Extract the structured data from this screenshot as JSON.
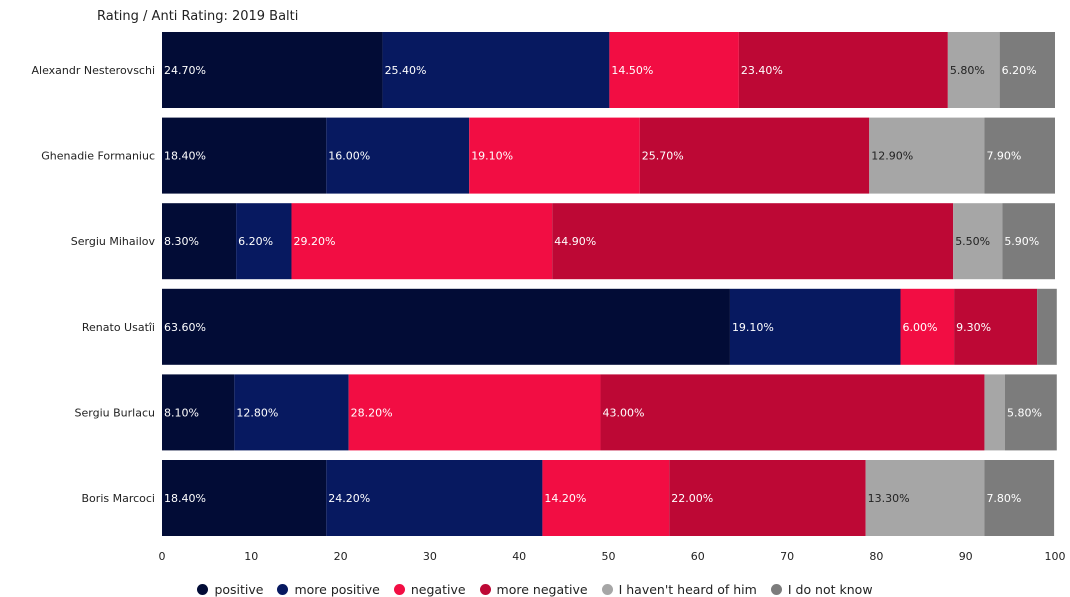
{
  "chart_data": {
    "type": "bar",
    "orientation": "horizontal",
    "stacked": true,
    "title": "Rating / Anti Rating: 2019 Balti",
    "xlabel": "",
    "ylabel": "",
    "xlim": [
      0,
      100
    ],
    "x_ticks": [
      "0",
      "10",
      "20",
      "30",
      "40",
      "50",
      "60",
      "70",
      "80",
      "90",
      "100"
    ],
    "grid": false,
    "legend_position": "bottom",
    "categories": [
      "Alexandr Nesterovschi",
      "Ghenadie Formaniuc",
      "Sergiu Mihailov",
      "Renato Usatîi",
      "Sergiu Burlacu",
      "Boris Marcoci"
    ],
    "series": [
      {
        "name": "positive",
        "color": "#020c36",
        "label_color": "#ffffff",
        "values": [
          24.7,
          18.4,
          8.3,
          63.6,
          8.1,
          18.4
        ],
        "labels": [
          "24.70%",
          "18.40%",
          "8.30%",
          "63.60%",
          "8.10%",
          "18.40%"
        ]
      },
      {
        "name": "more positive",
        "color": "#071960",
        "label_color": "#ffffff",
        "values": [
          25.4,
          16.0,
          6.2,
          19.1,
          12.8,
          24.2
        ],
        "labels": [
          "25.40%",
          "16.00%",
          "6.20%",
          "19.10%",
          "12.80%",
          "24.20%"
        ]
      },
      {
        "name": "negative",
        "color": "#f20d43",
        "label_color": "#ffffff",
        "values": [
          14.5,
          19.1,
          29.2,
          6.0,
          28.2,
          14.2
        ],
        "labels": [
          "14.50%",
          "19.10%",
          "29.20%",
          "6.00%",
          "28.20%",
          "14.20%"
        ]
      },
      {
        "name": "more negative",
        "color": "#bd0835",
        "label_color": "#ffffff",
        "values": [
          23.4,
          25.7,
          44.9,
          9.3,
          43.0,
          22.0
        ],
        "labels": [
          "23.40%",
          "25.70%",
          "44.90%",
          "9.30%",
          "43.00%",
          "22.00%"
        ]
      },
      {
        "name": "I haven't heard of him",
        "color": "#a6a6a6",
        "label_color": "#222222",
        "values": [
          5.8,
          12.9,
          5.5,
          0.0,
          2.3,
          13.3
        ],
        "labels": [
          "5.80%",
          "12.90%",
          "5.50%",
          "",
          "",
          "13.30%"
        ]
      },
      {
        "name": "I do not know",
        "color": "#7c7c7c",
        "label_color": "#ffffff",
        "values": [
          6.2,
          7.9,
          5.9,
          2.2,
          5.8,
          7.8
        ],
        "labels": [
          "6.20%",
          "7.90%",
          "5.90%",
          "",
          "5.80%",
          "7.80%"
        ]
      }
    ]
  }
}
